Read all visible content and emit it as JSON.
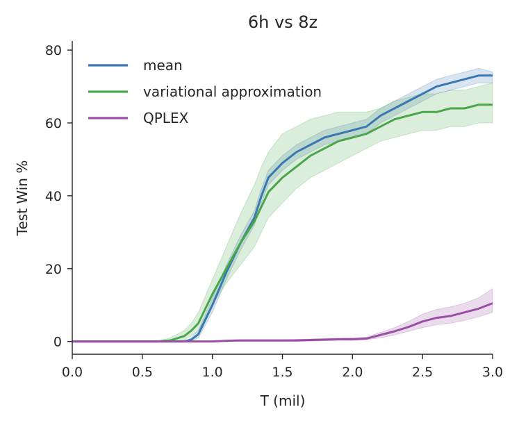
{
  "chart_data": {
    "type": "line",
    "title": "6h vs 8z",
    "xlabel": "T (mil)",
    "ylabel": "Test Win %",
    "xlim": [
      0.0,
      3.0
    ],
    "ylim": [
      -3.5,
      82.5
    ],
    "xticks": [
      "0.0",
      "0.5",
      "1.0",
      "1.5",
      "2.0",
      "2.5",
      "3.0"
    ],
    "yticks": [
      "0",
      "20",
      "40",
      "60",
      "80"
    ],
    "legend_position": "top-left",
    "x": [
      0.0,
      0.6,
      0.7,
      0.8,
      0.85,
      0.9,
      1.0,
      1.1,
      1.2,
      1.3,
      1.35,
      1.4,
      1.5,
      1.6,
      1.7,
      1.8,
      1.9,
      2.0,
      2.1,
      2.2,
      2.3,
      2.4,
      2.5,
      2.6,
      2.7,
      2.8,
      2.9,
      3.0
    ],
    "series": [
      {
        "name": "mean",
        "color": "#3a78b1",
        "values": [
          0,
          0,
          0,
          0,
          0.5,
          2,
          10,
          19,
          27,
          34,
          40,
          45,
          49,
          52,
          54,
          56,
          57,
          58,
          59,
          62,
          64,
          66,
          68,
          70,
          71,
          72,
          73,
          73
        ],
        "lower": [
          0,
          0,
          0,
          0,
          0,
          1,
          8,
          17,
          25,
          32,
          38,
          43,
          47,
          50,
          52,
          54,
          55,
          56,
          57,
          60,
          62,
          64,
          66,
          68,
          69,
          70,
          71,
          71
        ],
        "upper": [
          0,
          0,
          0,
          0,
          1,
          3,
          12,
          21,
          29,
          36,
          42,
          47,
          51,
          54,
          56,
          58,
          59,
          60,
          61,
          64,
          66,
          68,
          70,
          72,
          73,
          74,
          75,
          74
        ]
      },
      {
        "name": "variational approximation",
        "color": "#4aa64b",
        "values": [
          0,
          0,
          0.3,
          1.5,
          3,
          5,
          13,
          20,
          27,
          33,
          37,
          41,
          45,
          48,
          51,
          53,
          55,
          56,
          57,
          59,
          61,
          62,
          63,
          63,
          64,
          64,
          65,
          65
        ],
        "lower": [
          0,
          0,
          0,
          0.5,
          1.5,
          3,
          10,
          16,
          21,
          26,
          30,
          34,
          38,
          42,
          45,
          47,
          49,
          51,
          53,
          55,
          56,
          57,
          58,
          58,
          59,
          59,
          60,
          60
        ],
        "upper": [
          0,
          0,
          1,
          3,
          5,
          8,
          17,
          26,
          35,
          43,
          48,
          52,
          57,
          59,
          61,
          62,
          63,
          63,
          63,
          64,
          66,
          67,
          68,
          68,
          69,
          69,
          70,
          71
        ]
      },
      {
        "name": "QPLEX",
        "color": "#994fa3",
        "values": [
          0,
          0,
          0,
          0,
          0,
          0,
          0,
          0.2,
          0.3,
          0.3,
          0.3,
          0.3,
          0.3,
          0.3,
          0.4,
          0.5,
          0.6,
          0.6,
          0.8,
          1.8,
          2.8,
          4,
          5.5,
          6.5,
          7,
          8,
          9,
          10.5
        ],
        "lower": [
          0,
          0,
          0,
          0,
          0,
          0,
          0,
          0,
          0,
          0,
          0,
          0,
          0,
          0,
          0.1,
          0.2,
          0.3,
          0.3,
          0.5,
          1,
          1.8,
          2.8,
          3.8,
          4.6,
          5,
          5.8,
          6.8,
          8
        ],
        "upper": [
          0,
          0,
          0,
          0,
          0,
          0,
          0,
          0.4,
          0.5,
          0.5,
          0.5,
          0.5,
          0.5,
          0.6,
          0.7,
          0.8,
          0.9,
          1,
          1.2,
          2.5,
          3.8,
          5.5,
          7.5,
          8.8,
          9.5,
          10.5,
          12,
          14.5
        ]
      }
    ]
  }
}
